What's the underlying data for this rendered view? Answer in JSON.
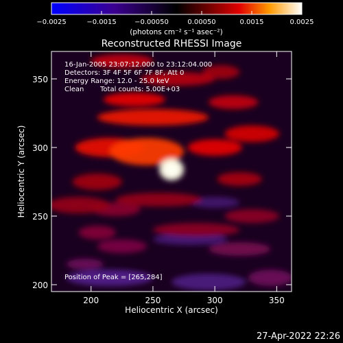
{
  "chart_data": {
    "type": "heatmap",
    "title": "Reconstructed RHESSI Image",
    "xlabel": "Heliocentric X (arcsec)",
    "ylabel": "Heliocentric Y (arcsec)",
    "xlim": [
      168,
      362
    ],
    "ylim": [
      195,
      370
    ],
    "xticks": [
      200,
      250,
      300,
      350
    ],
    "yticks": [
      200,
      250,
      300,
      350
    ],
    "colorbar": {
      "ticks": [
        "−0.0025",
        "−0.0015",
        "−0.00050",
        "0.00050",
        "0.0015",
        "0.0025"
      ],
      "unit_label": "(photons cm⁻² s⁻¹ asec⁻²)",
      "range": [
        -0.0025,
        0.0025
      ]
    },
    "annotations": {
      "time_range": "16-Jan-2005 23:07:12.000 to 23:12:04.000",
      "detectors": "Detectors: 3F 4F 5F 6F 7F 8F, Att 0",
      "energy": "Energy Range: 12.0 - 25.0 keV",
      "method": "Clean",
      "counts": "Total counts: 5.00E+03",
      "peak": "Position of Peak = [265,284]"
    },
    "peak_position": [
      265,
      284
    ],
    "features": [
      {
        "x": 265,
        "y": 284,
        "rx": 10,
        "ry": 8,
        "level": 1.0
      },
      {
        "x": 245,
        "y": 297,
        "rx": 30,
        "ry": 10,
        "level": 0.62
      },
      {
        "x": 215,
        "y": 300,
        "rx": 28,
        "ry": 7,
        "level": 0.48
      },
      {
        "x": 300,
        "y": 300,
        "rx": 22,
        "ry": 6,
        "level": 0.45
      },
      {
        "x": 330,
        "y": 310,
        "rx": 22,
        "ry": 6,
        "level": 0.42
      },
      {
        "x": 250,
        "y": 322,
        "rx": 45,
        "ry": 6,
        "level": 0.52
      },
      {
        "x": 235,
        "y": 335,
        "rx": 25,
        "ry": 5,
        "level": 0.45
      },
      {
        "x": 315,
        "y": 333,
        "rx": 20,
        "ry": 5,
        "level": 0.38
      },
      {
        "x": 270,
        "y": 350,
        "rx": 30,
        "ry": 5,
        "level": 0.36
      },
      {
        "x": 305,
        "y": 355,
        "rx": 15,
        "ry": 5,
        "level": 0.32
      },
      {
        "x": 225,
        "y": 363,
        "rx": 25,
        "ry": 5,
        "level": 0.38
      },
      {
        "x": 205,
        "y": 275,
        "rx": 20,
        "ry": 6,
        "level": 0.32
      },
      {
        "x": 320,
        "y": 277,
        "rx": 18,
        "ry": 5,
        "level": 0.33
      },
      {
        "x": 190,
        "y": 258,
        "rx": 25,
        "ry": 6,
        "level": 0.3
      },
      {
        "x": 255,
        "y": 262,
        "rx": 35,
        "ry": 5,
        "level": 0.3
      },
      {
        "x": 220,
        "y": 255,
        "rx": 20,
        "ry": 5,
        "level": 0.26
      },
      {
        "x": 330,
        "y": 250,
        "rx": 22,
        "ry": 5,
        "level": 0.27
      },
      {
        "x": 285,
        "y": 240,
        "rx": 35,
        "ry": 5,
        "level": 0.27
      },
      {
        "x": 205,
        "y": 238,
        "rx": 15,
        "ry": 5,
        "level": 0.24
      },
      {
        "x": 225,
        "y": 228,
        "rx": 20,
        "ry": 5,
        "level": 0.22
      },
      {
        "x": 320,
        "y": 226,
        "rx": 25,
        "ry": 5,
        "level": 0.2
      },
      {
        "x": 195,
        "y": 215,
        "rx": 15,
        "ry": 4,
        "level": 0.18
      },
      {
        "x": 345,
        "y": 205,
        "rx": 18,
        "ry": 6,
        "level": 0.18
      },
      {
        "x": 215,
        "y": 205,
        "rx": 35,
        "ry": 6,
        "level": -0.25
      },
      {
        "x": 295,
        "y": 202,
        "rx": 30,
        "ry": 6,
        "level": -0.2
      },
      {
        "x": 280,
        "y": 233,
        "rx": 30,
        "ry": 4,
        "level": -0.15
      },
      {
        "x": 300,
        "y": 260,
        "rx": 20,
        "ry": 4,
        "level": -0.1
      }
    ]
  },
  "footer": {
    "date": "27-Apr-2022 22:26"
  }
}
